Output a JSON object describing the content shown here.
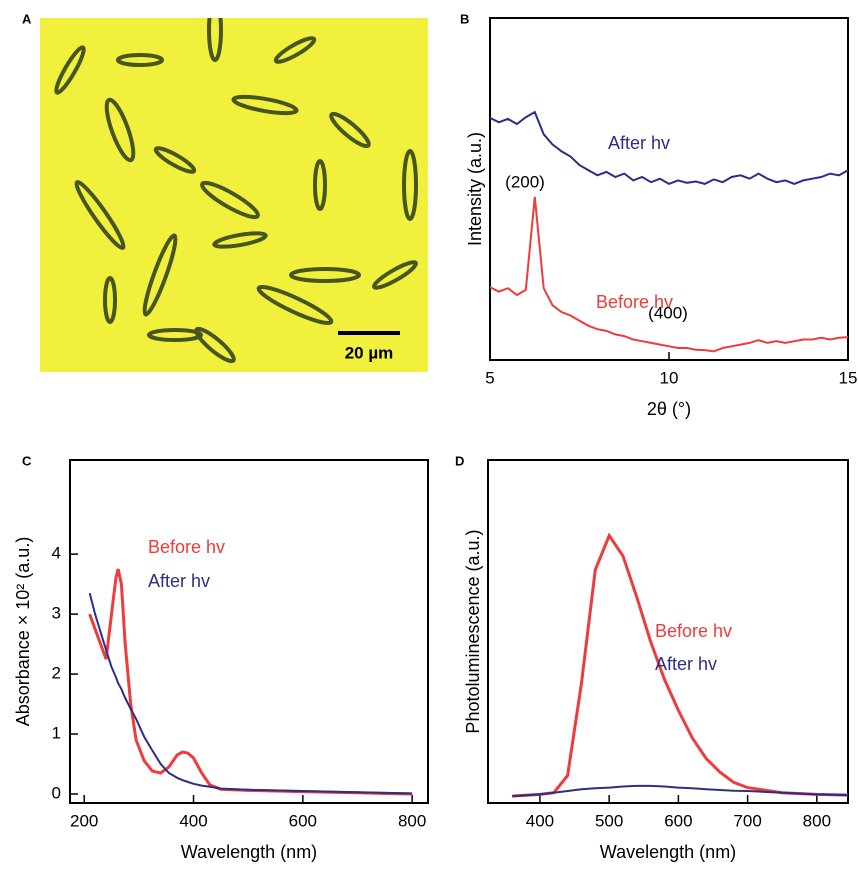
{
  "chart_data": [
    {
      "type": "image",
      "panel": "A",
      "scale_bar": "20 µm"
    },
    {
      "type": "line",
      "panel": "B",
      "xlabel": "2θ (°)",
      "ylabel": "Intensity (a.u.)",
      "xlim": [
        5,
        15
      ],
      "xticks": [
        5,
        10,
        15
      ],
      "ylim": [
        0,
        100
      ],
      "x": [
        5,
        5.25,
        5.5,
        5.75,
        6,
        6.25,
        6.5,
        6.75,
        7,
        7.25,
        7.5,
        7.75,
        8,
        8.25,
        8.5,
        8.75,
        9,
        9.25,
        9.5,
        9.75,
        10,
        10.25,
        10.5,
        10.75,
        11,
        11.25,
        11.5,
        11.75,
        12,
        12.25,
        12.5,
        12.75,
        13,
        13.25,
        13.5,
        13.75,
        14,
        14.25,
        14.5,
        14.75,
        15
      ],
      "series": [
        {
          "name": "After hv",
          "color": "#2b2e86",
          "values": [
            70.8,
            69.5,
            70.5,
            69,
            71,
            72.5,
            66,
            63,
            61,
            59.5,
            57,
            55.5,
            54,
            55,
            53.5,
            54.5,
            52.5,
            53.5,
            52,
            53,
            51.5,
            52.5,
            51.8,
            52.2,
            51.5,
            52.8,
            52,
            53.5,
            54,
            53,
            54.5,
            53,
            52,
            52.5,
            51.5,
            52.5,
            53,
            53.5,
            54.5,
            54,
            55.5
          ]
        },
        {
          "name": "Before hv",
          "color": "#ee3b3b",
          "values": [
            21.3,
            20,
            21,
            19,
            20.5,
            47.7,
            21,
            16,
            14,
            13,
            11.5,
            10,
            9,
            8.5,
            7.5,
            7,
            6,
            5.5,
            5,
            4.5,
            4,
            3.5,
            3.5,
            3,
            2.9,
            2.5,
            3.5,
            4,
            4.5,
            5,
            5.8,
            5,
            5.5,
            5,
            5.5,
            6,
            6,
            6.5,
            6,
            6.5,
            6.7
          ]
        }
      ],
      "annotations": [
        "(200)",
        "(400)"
      ]
    },
    {
      "type": "line",
      "panel": "C",
      "xlabel": "Wavelength (nm)",
      "ylabel": "Absorbance × 10² (a.u.)",
      "xlim": [
        174,
        829
      ],
      "xticks": [
        200,
        400,
        600,
        800
      ],
      "ylim": [
        -0.15,
        5.57
      ],
      "yticks": [
        0,
        1,
        2,
        3,
        4
      ],
      "x": [
        210,
        220,
        230,
        240,
        250,
        258,
        262,
        268,
        275,
        285,
        295,
        310,
        325,
        340,
        355,
        370,
        380,
        390,
        400,
        415,
        430,
        450,
        500,
        600,
        700,
        800
      ],
      "series": [
        {
          "name": "Before hv",
          "color": "#ee3b3b",
          "values": [
            3.0,
            2.75,
            2.5,
            2.25,
            3.0,
            3.6,
            3.75,
            3.5,
            2.5,
            1.5,
            0.9,
            0.55,
            0.38,
            0.35,
            0.45,
            0.65,
            0.7,
            0.68,
            0.6,
            0.35,
            0.15,
            0.08,
            0.06,
            0.04,
            0.02,
            0.0
          ]
        },
        {
          "name": "After hv",
          "color": "#2b2e86",
          "values": [
            3.35,
            3.0,
            2.7,
            2.4,
            2.12,
            1.95,
            1.85,
            1.75,
            1.6,
            1.42,
            1.25,
            0.95,
            0.72,
            0.5,
            0.35,
            0.27,
            0.23,
            0.2,
            0.17,
            0.14,
            0.12,
            0.09,
            0.07,
            0.05,
            0.03,
            0.01
          ]
        }
      ]
    },
    {
      "type": "line",
      "panel": "D",
      "xlabel": "Wavelength (nm)",
      "ylabel": "Photoluminescence (a.u.)",
      "xlim": [
        325,
        845
      ],
      "xticks": [
        400,
        500,
        600,
        700,
        800
      ],
      "ylim": [
        0,
        100
      ],
      "x": [
        360,
        400,
        420,
        440,
        460,
        480,
        500,
        520,
        540,
        560,
        580,
        600,
        620,
        640,
        660,
        680,
        700,
        750,
        800,
        845
      ],
      "series": [
        {
          "name": "Before hv",
          "color": "#ee3b3b",
          "values": [
            2,
            2.5,
            3,
            8,
            35,
            68,
            78,
            72,
            60,
            47,
            36,
            27,
            19,
            13,
            9,
            6,
            4.5,
            3,
            2.5,
            2.3
          ]
        },
        {
          "name": "After hv",
          "color": "#2b2e86",
          "values": [
            2,
            2.5,
            3,
            3.5,
            4,
            4.3,
            4.5,
            4.8,
            5,
            5,
            4.8,
            4.5,
            4.3,
            4,
            3.8,
            3.6,
            3.5,
            3,
            2.5,
            2.3
          ]
        }
      ]
    }
  ]
}
